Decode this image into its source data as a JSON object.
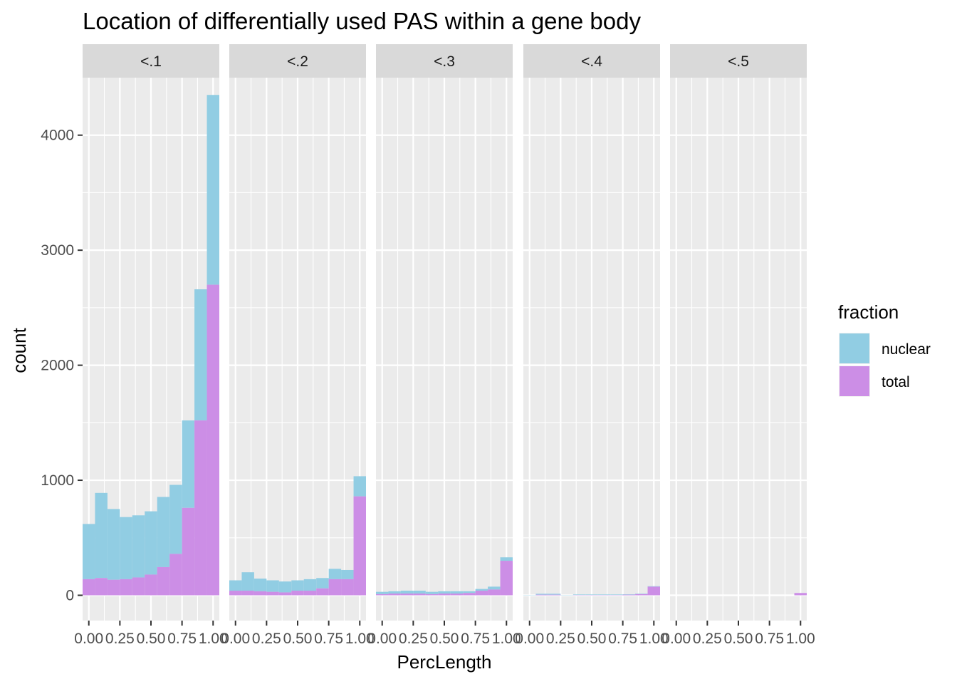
{
  "chart_data": {
    "type": "bar",
    "subtype": "stacked histogram (faceted)",
    "title": "Location of differentially used PAS within a gene body",
    "xlabel": "PercLength",
    "ylabel": "count",
    "xlim": [
      -0.05,
      1.05
    ],
    "ylim": [
      -220,
      4500
    ],
    "x_ticks": [
      0,
      0.25,
      0.5,
      0.75,
      1
    ],
    "x_tick_labels": [
      "0.00",
      "0.25",
      "0.50",
      "0.75",
      "1.00"
    ],
    "y_ticks": [
      0,
      1000,
      2000,
      3000,
      4000
    ],
    "y_tick_labels": [
      "0",
      "1000",
      "2000",
      "3000",
      "4000"
    ],
    "grid": true,
    "bin_centers": [
      0,
      0.1,
      0.2,
      0.3,
      0.4,
      0.5,
      0.6,
      0.7,
      0.8,
      0.9,
      1.0
    ],
    "legend": {
      "title": "fraction",
      "position": "right",
      "entries": [
        {
          "name": "nuclear",
          "color": "#91cde3"
        },
        {
          "name": "total",
          "color": "#cc8ee6"
        }
      ]
    },
    "panels": [
      {
        "label": "<.1",
        "nuclear": [
          480,
          740,
          615,
          540,
          540,
          550,
          610,
          600,
          760,
          1140,
          1650
        ],
        "total": [
          140,
          150,
          135,
          140,
          155,
          180,
          245,
          360,
          760,
          1520,
          2700
        ]
      },
      {
        "label": "<.2",
        "nuclear": [
          90,
          160,
          110,
          100,
          95,
          90,
          100,
          90,
          90,
          80,
          175
        ],
        "total": [
          40,
          40,
          35,
          30,
          25,
          40,
          40,
          60,
          140,
          140,
          860
        ]
      },
      {
        "label": "<.3",
        "nuclear": [
          20,
          20,
          25,
          25,
          20,
          20,
          20,
          15,
          15,
          25,
          30
        ],
        "total": [
          10,
          15,
          15,
          15,
          10,
          15,
          15,
          20,
          40,
          50,
          300
        ]
      },
      {
        "label": "<.4",
        "nuclear": [
          2,
          8,
          8,
          2,
          5,
          5,
          5,
          5,
          4,
          4,
          4
        ],
        "total": [
          0,
          5,
          5,
          0,
          2,
          2,
          2,
          2,
          5,
          10,
          75
        ]
      },
      {
        "label": "<.5",
        "nuclear": [
          0,
          0,
          0,
          0,
          0,
          0,
          0,
          0,
          0,
          0,
          0
        ],
        "total": [
          0,
          0,
          0,
          0,
          0,
          0,
          0,
          0,
          0,
          0,
          20
        ]
      }
    ]
  }
}
